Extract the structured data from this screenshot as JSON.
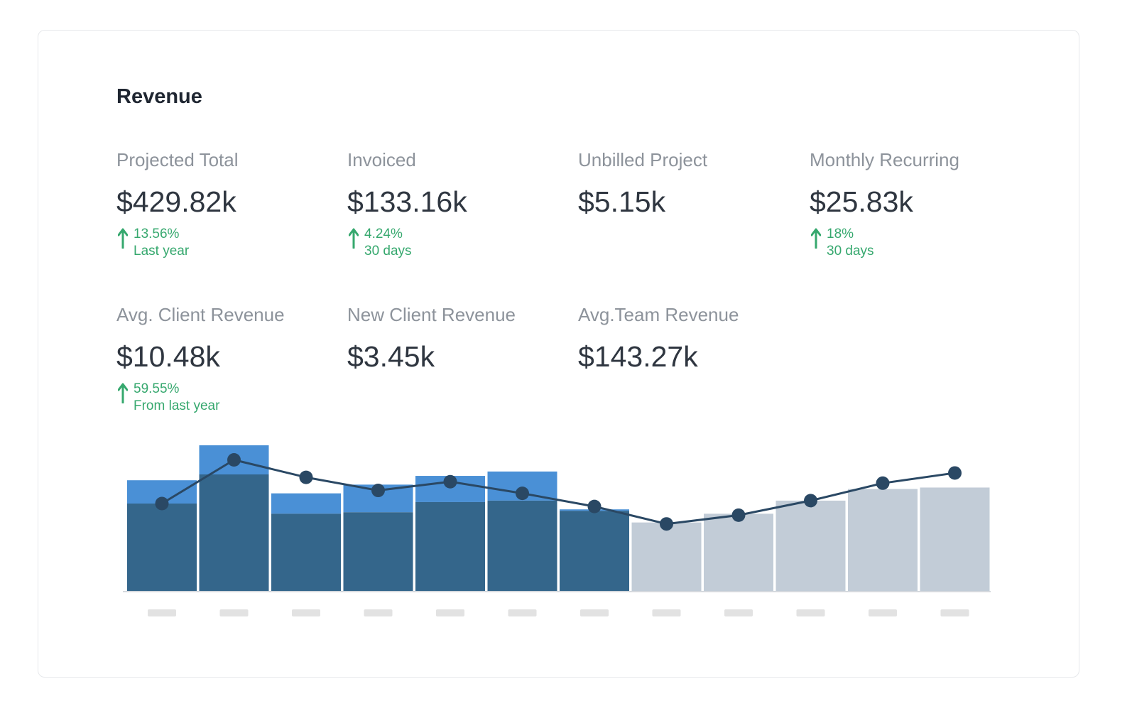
{
  "card": {
    "title": "Revenue"
  },
  "stats": [
    {
      "label": "Projected Total",
      "value": "$429.82k",
      "change": "13.56%",
      "period": "Last year"
    },
    {
      "label": "Invoiced",
      "value": "$133.16k",
      "change": "4.24%",
      "period": "30 days"
    },
    {
      "label": "Unbilled Project",
      "value": "$5.15k"
    },
    {
      "label": "Monthly Recurring",
      "value": "$25.83k",
      "change": "18%",
      "period": "30 days"
    },
    {
      "label": "Avg. Client Revenue",
      "value": "$10.48k",
      "change": "59.55%",
      "period": "From last year"
    },
    {
      "label": "New Client Revenue",
      "value": "$3.45k"
    },
    {
      "label": "Avg.Team Revenue",
      "value": "$143.27k"
    }
  ],
  "colors": {
    "bar_actual": "#34668b",
    "bar_top": "#4a90d6",
    "bar_projected": "#c2ccd7",
    "line": "#2a4864",
    "positive": "#36a86e",
    "tick_placeholder": "#e2e2e2"
  },
  "chart_data": {
    "type": "bar",
    "categories": [
      "",
      "",
      "",
      "",
      "",
      "",
      "",
      "",
      "",
      "",
      "",
      ""
    ],
    "ylim": [
      0,
      100
    ],
    "series": [
      {
        "values": [
          60,
          80,
          53,
          54,
          61,
          62,
          55,
          0,
          0,
          0,
          0,
          0
        ]
      },
      {
        "values": [
          16,
          20,
          14,
          19,
          18,
          20,
          1,
          0,
          0,
          0,
          0,
          0
        ]
      },
      {
        "values": [
          0,
          0,
          0,
          0,
          0,
          0,
          0,
          47,
          53,
          62,
          70,
          71
        ]
      },
      {
        "type": "line",
        "values": [
          60,
          90,
          78,
          69,
          75,
          67,
          58,
          46,
          52,
          62,
          74,
          81
        ]
      }
    ],
    "legend": false,
    "grid": false
  }
}
